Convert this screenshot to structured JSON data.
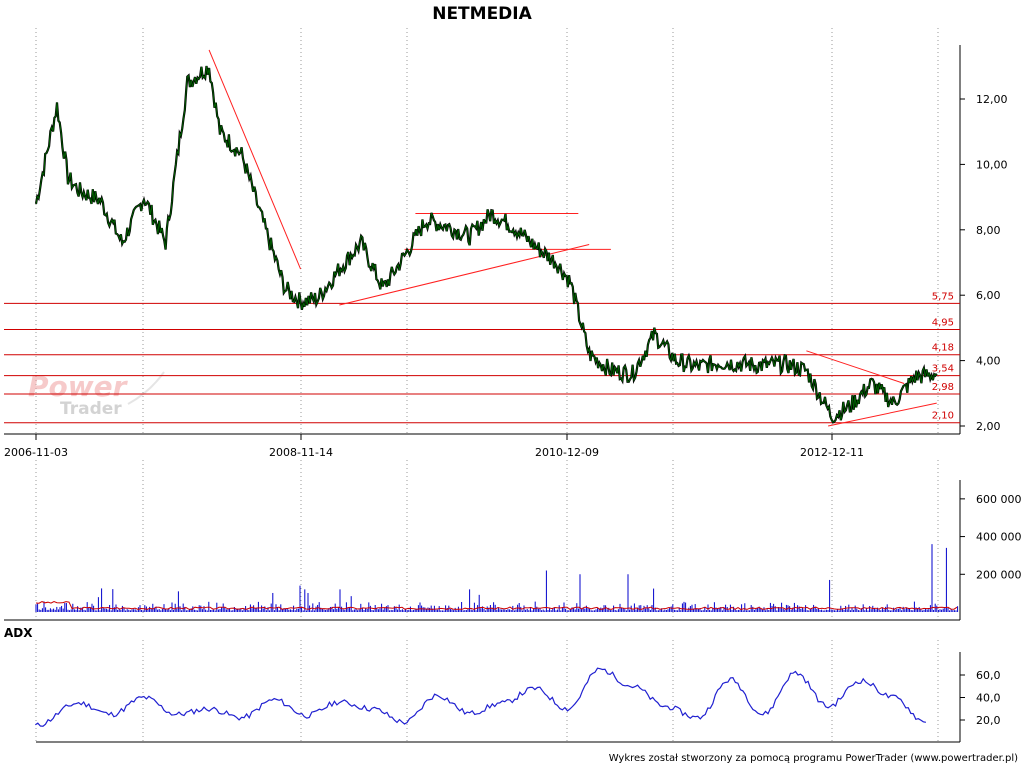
{
  "chart_data": [
    {
      "type": "line",
      "title": "NETMEDIA",
      "x_ticks": [
        "2006-11-03",
        "2008-11-14",
        "2010-12-09",
        "2012-12-11"
      ],
      "y_ticks": [
        "12,00",
        "10,00",
        "8,00",
        "6,00",
        "4,00",
        "2,00"
      ],
      "ylim": [
        2,
        13.5
      ],
      "levels": [
        "5,75",
        "4,95",
        "4,18",
        "3,54",
        "2,98",
        "2,10"
      ],
      "series": [
        {
          "color": "#006400",
          "x": [
            "2006-11-03",
            "2007-01",
            "2007-02",
            "2007-03",
            "2007-05",
            "2007-07",
            "2007-09",
            "2007-11",
            "2008-01",
            "2008-03",
            "2008-04",
            "2008-06",
            "2008-08",
            "2008-10",
            "2008-11-14",
            "2009-01",
            "2009-03",
            "2009-05",
            "2009-07",
            "2009-09",
            "2009-11",
            "2010-01",
            "2010-03",
            "2010-05",
            "2010-07",
            "2010-09",
            "2010-11",
            "2010-12-09",
            "2011-02",
            "2011-04",
            "2011-06",
            "2011-08",
            "2011-10",
            "2011-12",
            "2012-02",
            "2012-04",
            "2012-06",
            "2012-08",
            "2012-10",
            "2012-12-11",
            "2013-02",
            "2013-04",
            "2013-06",
            "2013-08",
            "2013-10"
          ],
          "y": [
            8.8,
            11.8,
            9.6,
            9.2,
            8.9,
            7.6,
            9.0,
            7.6,
            12.5,
            13.0,
            11.0,
            10.3,
            8.2,
            6.2,
            5.8,
            5.9,
            6.8,
            7.6,
            6.2,
            7.2,
            8.3,
            8.1,
            7.8,
            8.5,
            8.1,
            7.5,
            7.0,
            6.4,
            4.2,
            3.7,
            3.6,
            4.8,
            4.0,
            3.8,
            3.95,
            3.9,
            3.85,
            3.9,
            3.7,
            2.3,
            2.6,
            3.3,
            2.7,
            3.5,
            3.6
          ]
        }
      ]
    },
    {
      "type": "bar",
      "y_ticks": [
        "600 000",
        "400 000",
        "200 000"
      ],
      "ylim": [
        0,
        700000
      ],
      "color": "#0000cc",
      "average_color": "#cc0000"
    },
    {
      "type": "line",
      "title": "ADX",
      "y_ticks": [
        "60,0",
        "40,0",
        "20,0"
      ],
      "ylim": [
        10,
        70
      ],
      "color": "#2020d0",
      "x": [
        "2006-11",
        "2007-03",
        "2007-06",
        "2007-09",
        "2007-12",
        "2008-03",
        "2008-06",
        "2008-09",
        "2008-12",
        "2009-03",
        "2009-06",
        "2009-09",
        "2009-12",
        "2010-03",
        "2010-06",
        "2010-09",
        "2010-12",
        "2011-03",
        "2011-06",
        "2011-09",
        "2011-12",
        "2012-03",
        "2012-06",
        "2012-09",
        "2012-12",
        "2013-03",
        "2013-06",
        "2013-09"
      ],
      "y": [
        15,
        35,
        25,
        40,
        25,
        30,
        22,
        38,
        24,
        36,
        30,
        18,
        42,
        26,
        35,
        48,
        30,
        65,
        50,
        32,
        22,
        56,
        25,
        62,
        32,
        55,
        40,
        18
      ]
    }
  ],
  "labels": {
    "brand_line1": "Power",
    "brand_line2": "Trader",
    "credit": "Wykres został stworzony za pomocą programu PowerTrader (www.powertrader.pl)"
  }
}
